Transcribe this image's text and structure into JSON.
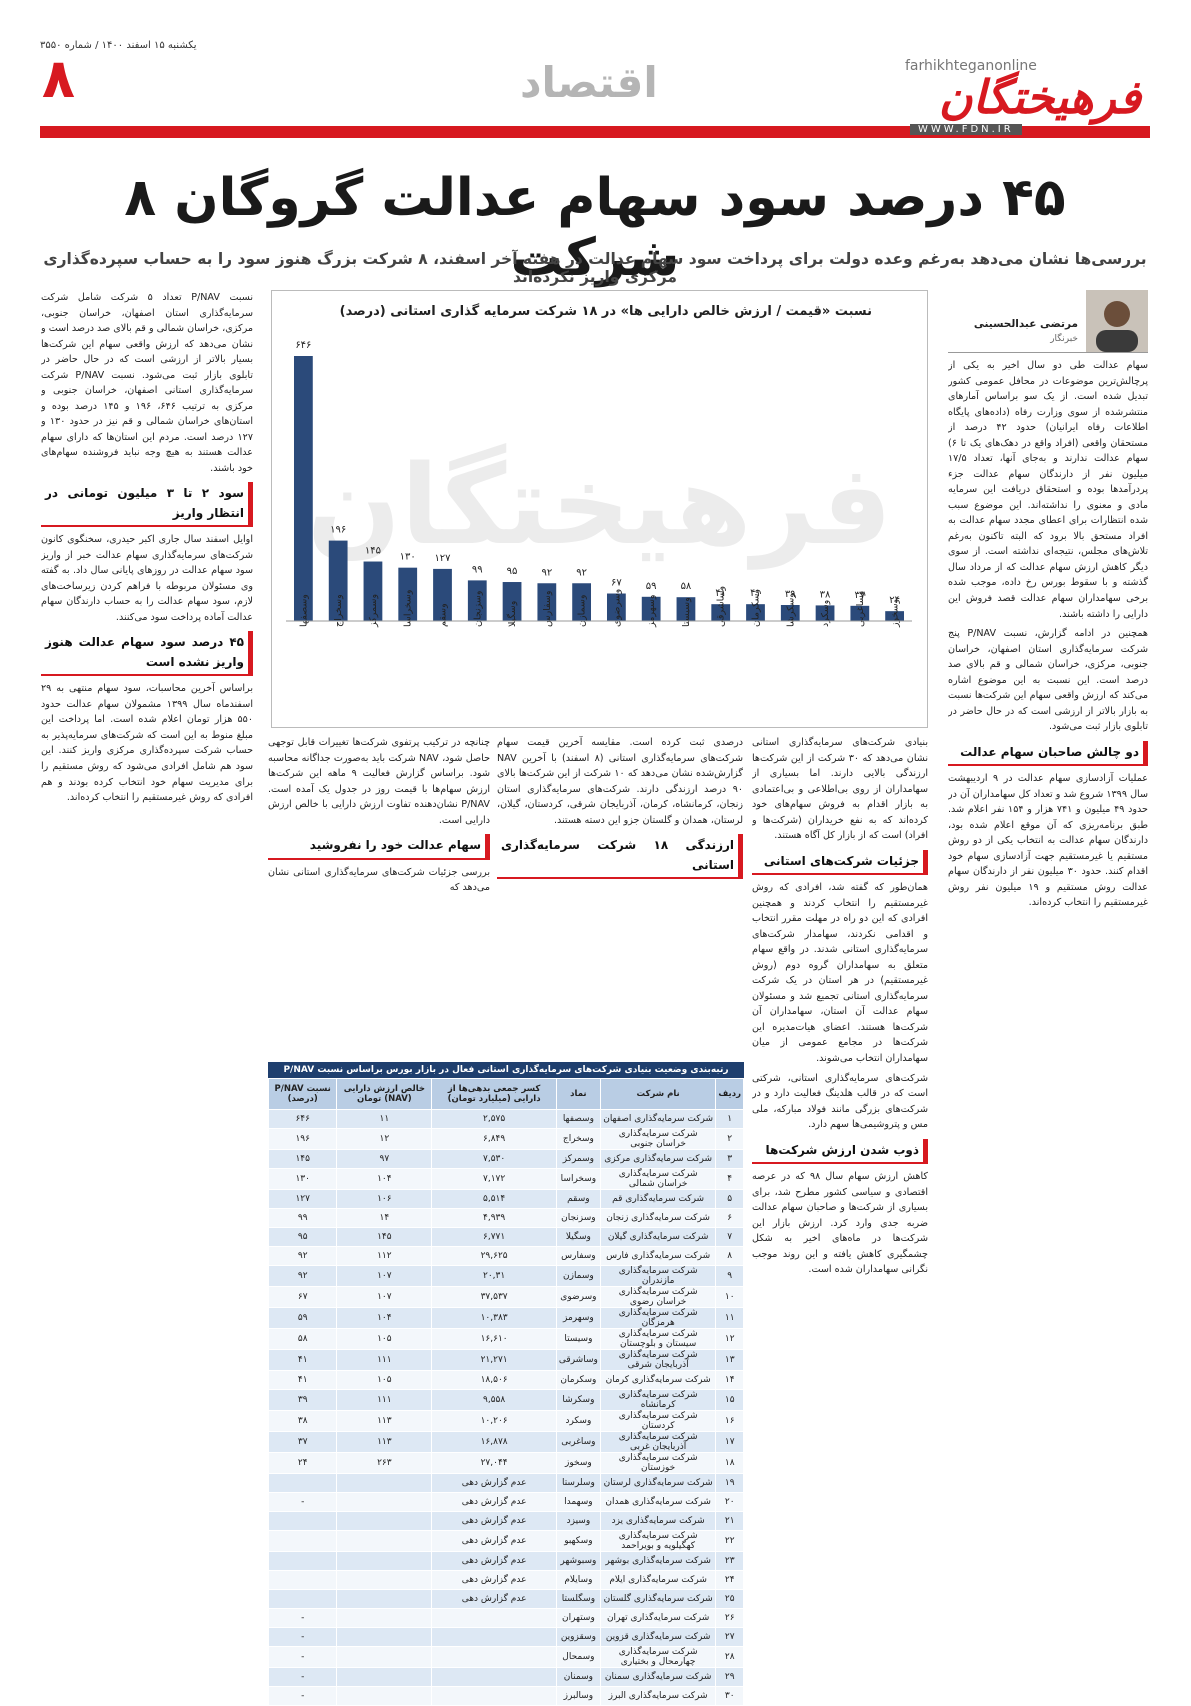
{
  "header": {
    "date": "یکشنبه ۱۵ اسفند ۱۴۰۰ / شماره ۳۵۵۰",
    "page_number": "۸",
    "section": "اقتصاد",
    "logo": "فرهیختگان",
    "site": "farhikhteganonline",
    "url": "WWW.FDN.IR"
  },
  "headline": "۴۵ درصد سود سهام عدالت گروگان ۸ شرکت",
  "lead": "بررسی‌ها نشان می‌دهد به‌رغم وعده دولت برای پرداخت سود سهام عدالت در هفته آخر اسفند، ۸ شرکت بزرگ هنوز سود را به حساب سپرده‌گذاری مرکزی واریز نکرده‌اند",
  "author": {
    "name": "مرتضی عبدالحسینی",
    "role": "خبرنگار"
  },
  "chart_data": {
    "type": "bar",
    "title": "نسبت «قیمت / ارزش خالص دارایی ها» در ۱۸ شرکت سرمایه گذاری استانی (درصد)",
    "categories": [
      "وسصفها",
      "وسخراج",
      "وسمرکز",
      "وسخراسا",
      "وسقم",
      "وسزنجان",
      "وسگیلا",
      "وسفارس",
      "وسمازن",
      "وسرضوی",
      "وسهرمز",
      "وسیستا",
      "وساشرقی",
      "وسکرمان",
      "وسکرشا",
      "وسکرد",
      "وساغربی",
      "وسخوز"
    ],
    "values": [
      646,
      196,
      145,
      130,
      127,
      99,
      95,
      92,
      92,
      67,
      59,
      58,
      41,
      41,
      39,
      38,
      37,
      24
    ],
    "value_labels": [
      "۶۴۶",
      "۱۹۶",
      "۱۴۵",
      "۱۳۰",
      "۱۲۷",
      "۹۹",
      "۹۵",
      "۹۲",
      "۹۲",
      "۶۷",
      "۵۹",
      "۵۸",
      "۴۱",
      "۴۱",
      "۳۹",
      "۳۸",
      "۳۷",
      "۲۴"
    ],
    "color": "#2b4a7a"
  },
  "columns": {
    "right": [
      "سهام عدالت طی دو سال اخیر به یکی از پرچالش‌ترین موضوعات در محافل عمومی کشور تبدیل شده است. از یک سو براساس آمارهای منتشرشده از سوی وزارت رفاه (داده‌های پایگاه اطلاعات رفاه ایرانیان) حدود ۴۲ درصد از مستحقان واقعی (افراد واقع در دهک‌های یک تا ۶) سهام عدالت ندارند و به‌جای آنها، تعداد ۱۷/۵ میلیون نفر از دارندگان سهام عدالت جزء پردرآمدها بوده و استحقاق دریافت این سرمایه مادی و معنوی را نداشته‌اند. این موضوع سبب شده انتظارات برای اعطای مجدد سهام عدالت به افراد مستحق بالا برود که البته تاکنون به‌رغم تلاش‌های مجلس، نتیجه‌ای نداشته است. از سوی دیگر کاهش ارزش سهام عدالت که از مرداد سال گذشته و با سقوط بورس رخ داده، موجب شده برخی سهامداران سهام عدالت قصد فروش این دارایی را داشته باشند.",
      "همچنین در ادامه گزارش، نسبت P/NAV پنج شرکت سرمایه‌گذاری استان اصفهان، خراسان جنوبی، مرکزی، خراسان شمالی و قم بالای صد درصد است. این نسبت به این موضوع اشاره می‌کند که ارزش واقعی سهام این شرکت‌ها نسبت به بازار بالاتر از ارزشی است که در حال حاضر در تابلوی بازار ثبت می‌شود."
    ],
    "right_heading": "دو چالش صاحبان سهام عدالت",
    "right_after": [
      "عملیات آزادسازی سهام عدالت در ۹ اردیبهشت سال ۱۳۹۹ شروع شد و تعداد کل سهامداران آن در حدود ۴۹ میلیون و ۷۴۱ هزار و ۱۵۴ نفر اعلام شد. طبق برنامه‌ریزی که آن موقع اعلام شده بود، دارندگان سهام عدالت به انتخاب یکی از دو روش مستقیم یا غیرمستقیم جهت آزادسازی سهام خود اقدام کنند. حدود ۳۰ میلیون نفر از دارندگان سهام عدالت روش مستقیم و ۱۹ میلیون نفر روش غیرمستقیم را انتخاب کرده‌اند."
    ],
    "left_top": [
      "نسبت P/NAV تعداد ۵ شرکت شامل شرکت سرمایه‌گذاری استان اصفهان، خراسان جنوبی، مرکزی، خراسان شمالی و قم بالای صد درصد است و نشان می‌دهد که ارزش واقعی سهام این شرکت‌ها بسیار بالاتر از ارزشی است که در حال حاضر در تابلوی بازار ثبت می‌شود. نسبت P/NAV شرکت سرمایه‌گذاری استانی اصفهان، خراسان جنوبی و مرکزی به ترتیب ۶۴۶، ۱۹۶ و ۱۴۵ درصد بوده و استان‌های خراسان شمالی و قم نیز در حدود ۱۳۰ و ۱۲۷ درصد است. مردم این استان‌ها که دارای سهام عدالت هستند به هیچ وجه نباید فروشنده سهام‌های خود باشند."
    ],
    "left_heading": "سود ۲ تا ۳ میلیون تومانی در انتظار واریز",
    "left_mid": [
      "اوایل اسفند سال جاری اکبر حیدری، سخنگوی کانون شرکت‌های سرمایه‌گذاری سهام عدالت خبر از واریز سود سهام عدالت در روزهای پایانی سال داد. به گفته وی مسئولان مربوطه با فراهم کردن زیرساخت‌های لازم، سود سهام عدالت را به حساب دارندگان سهام عدالت آماده پرداخت سود می‌کنند."
    ],
    "left_heading2": "۴۵ درصد سود سهام عدالت هنوز واریز نشده است",
    "left_bottom": [
      "براساس آخرین محاسبات، سود سهام منتهی به ۲۹ اسفندماه سال ۱۳۹۹ مشمولان سهام عدالت حدود ۵۵۰ هزار تومان اعلام شده است. اما پرداخت این مبلغ منوط به این است که شرکت‌های سرمایه‌پذیر به حساب شرکت سپرده‌گذاری مرکزی واریز کنند. این سود هم شامل افرادی می‌شود که روش مستقیم را برای مدیریت سهام خود انتخاب کرده بودند و هم افرادی که روش غیرمستقیم را انتخاب کرده‌اند."
    ],
    "mid_right": [
      "بنیادی شرکت‌های سرمایه‌گذاری استانی نشان می‌دهد که ۳۰ شرکت از این شرکت‌ها ارزندگی بالایی دارند. اما بسیاری از سهامداران از روی بی‌اطلاعی و بی‌اعتمادی به بازار اقدام به فروش سهام‌های خود کرده‌اند که به نفع خریداران (شرکت‌ها و افراد) است که از بازار کل آگاه هستند."
    ],
    "mid_right_heading": "جزئیات شرکت‌های استانی",
    "mid_right_after": [
      "همان‌طور که گفته شد، افرادی که روش غیرمستقیم را انتخاب کردند و همچنین افرادی که این دو راه در مهلت مقرر انتخاب و اقدامی نکردند، سهامدار شرکت‌های سرمایه‌گذاری استانی شدند. در واقع سهام متعلق به سهامداران گروه دوم (روش غیرمستقیم) در هر استان در یک شرکت سرمایه‌گذاری استانی تجمیع شد و مسئولان سهام عدالت آن استان، سهامداران آن شرکت‌ها هستند. اعضای هیات‌مدیره این شرکت‌ها در مجامع عمومی از میان سهامداران انتخاب می‌شوند.",
      "شرکت‌های سرمایه‌گذاری استانی، شرکتی است که در قالب هلدینگ فعالیت دارد و در شرکت‌های بزرگی مانند فولاد مبارکه، ملی مس و پتروشیمی‌ها سهم دارد."
    ],
    "mid_right_heading2": "ذوب شدن ارزش شرکت‌ها",
    "mid_right_after2": [
      "کاهش ارزش سهام سال ۹۸ که در عرصه اقتصادی و سیاسی کشور مطرح شد، برای بسیاری از شرکت‌ها و صاحبان سهام عدالت ضربه جدی وارد کرد. ارزش بازار این شرکت‌ها در ماه‌های اخیر به شکل چشمگیری کاهش یافته و این روند موجب نگرانی سهامداران شده است."
    ],
    "mid_left": [
      "درصدی ثبت کرده است. مقایسه آخرین قیمت سهام شرکت‌های سرمایه‌گذاری استانی (۸ اسفند) با آخرین NAV گزارش‌شده نشان می‌دهد که ۱۰ شرکت از این شرکت‌ها بالای ۹۰ درصد ارزندگی دارند. شرکت‌های سرمایه‌گذاری استان زنجان، کرمانشاه، کرمان، آذربایجان شرقی، کردستان، گیلان، لرستان، همدان و گلستان جزو این دسته هستند."
    ],
    "mid_left_heading": "ارزندگی ۱۸ شرکت سرمایه‌گذاری استانی",
    "mid_mid": [
      "چنانچه در ترکیب پرتفوی شرکت‌ها تغییرات قابل توجهی حاصل شود، NAV شرکت باید به‌صورت جداگانه محاسبه شود. براساس گزارش فعالیت ۹ ماهه این شرکت‌ها ارزش سهام‌ها با قیمت روز در جدول یک آمده است. P/NAV نشان‌دهنده تفاوت ارزش دارایی با خالص ارزش دارایی است."
    ],
    "mid_mid_heading": "سهام عدالت خود را نفروشید",
    "mid_mid_after": [
      "بررسی جزئیات شرکت‌های سرمایه‌گذاری استانی نشان می‌دهد که"
    ]
  },
  "table": {
    "title": "رتبه‌بندی وضعیت بنیادی شرکت‌های سرمایه‌گذاری استانی فعال در بازار بورس براساس نسبت P/NAV",
    "columns": [
      "ردیف",
      "نام شرکت",
      "نماد",
      "کسر جمعی بدهی‌ها از دارایی (میلیارد تومان)",
      "خالص ارزش دارایی (NAV) تومان",
      "نسبت P/NAV (درصد)"
    ],
    "rows": [
      [
        "۱",
        "شرکت سرمایه‌گذاری اصفهان",
        "وسصفها",
        "۲,۵۷۵",
        "۱۱",
        "۶۴۶"
      ],
      [
        "۲",
        "شرکت سرمایه‌گذاری خراسان جنوبی",
        "وسخراج",
        "۶,۸۴۹",
        "۱۲",
        "۱۹۶"
      ],
      [
        "۳",
        "شرکت سرمایه‌گذاری مرکزی",
        "وسمرکز",
        "۷,۵۳۰",
        "۹۷",
        "۱۴۵"
      ],
      [
        "۴",
        "شرکت سرمایه‌گذاری خراسان شمالی",
        "وسخراسا",
        "۷,۱۷۲",
        "۱۰۴",
        "۱۳۰"
      ],
      [
        "۵",
        "شرکت سرمایه‌گذاری قم",
        "وسقم",
        "۵,۵۱۴",
        "۱۰۶",
        "۱۲۷"
      ],
      [
        "۶",
        "شرکت سرمایه‌گذاری زنجان",
        "وسزنجان",
        "۴,۹۳۹",
        "۱۴",
        "۹۹"
      ],
      [
        "۷",
        "شرکت سرمایه‌گذاری گیلان",
        "وسگیلا",
        "۶,۷۷۱",
        "۱۴۵",
        "۹۵"
      ],
      [
        "۸",
        "شرکت سرمایه‌گذاری فارس",
        "وسفارس",
        "۲۹,۶۲۵",
        "۱۱۲",
        "۹۲"
      ],
      [
        "۹",
        "شرکت سرمایه‌گذاری مازندران",
        "وسمازن",
        "۲۰,۳۱",
        "۱۰۷",
        "۹۲"
      ],
      [
        "۱۰",
        "شرکت سرمایه‌گذاری خراسان رضوی",
        "وسرضوی",
        "۳۷,۵۳۷",
        "۱۰۷",
        "۶۷"
      ],
      [
        "۱۱",
        "شرکت سرمایه‌گذاری هرمزگان",
        "وسهرمز",
        "۱۰,۳۸۳",
        "۱۰۴",
        "۵۹"
      ],
      [
        "۱۲",
        "شرکت سرمایه‌گذاری سیستان و بلوچستان",
        "وسیستا",
        "۱۶,۶۱۰",
        "۱۰۵",
        "۵۸"
      ],
      [
        "۱۳",
        "شرکت سرمایه‌گذاری آذربایجان شرقی",
        "وساشرقی",
        "۲۱,۲۷۱",
        "۱۱۱",
        "۴۱"
      ],
      [
        "۱۴",
        "شرکت سرمایه‌گذاری کرمان",
        "وسکرمان",
        "۱۸,۵۰۶",
        "۱۰۵",
        "۴۱"
      ],
      [
        "۱۵",
        "شرکت سرمایه‌گذاری کرمانشاه",
        "وسکرشا",
        "۹,۵۵۸",
        "۱۱۱",
        "۳۹"
      ],
      [
        "۱۶",
        "شرکت سرمایه‌گذاری کردستان",
        "وسکرد",
        "۱۰,۲۰۶",
        "۱۱۳",
        "۳۸"
      ],
      [
        "۱۷",
        "شرکت سرمایه‌گذاری آذربایجان غربی",
        "وساغربی",
        "۱۶,۸۷۸",
        "۱۱۳",
        "۳۷"
      ],
      [
        "۱۸",
        "شرکت سرمایه‌گذاری خوزستان",
        "وسخوز",
        "۲۷,۰۴۴",
        "۲۶۳",
        "۲۴"
      ],
      [
        "۱۹",
        "شرکت سرمایه‌گذاری لرستان",
        "وسلرستا",
        "عدم گزارش دهی",
        "",
        ""
      ],
      [
        "۲۰",
        "شرکت سرمایه‌گذاری همدان",
        "وسهمدا",
        "عدم گزارش دهی",
        "",
        "-"
      ],
      [
        "۲۱",
        "شرکت سرمایه‌گذاری یزد",
        "وسیزد",
        "عدم گزارش دهی",
        "",
        ""
      ],
      [
        "۲۲",
        "شرکت سرمایه‌گذاری کهگیلویه و بویراحمد",
        "وسکهبو",
        "عدم گزارش دهی",
        "",
        ""
      ],
      [
        "۲۳",
        "شرکت سرمایه‌گذاری بوشهر",
        "وسبوشهر",
        "عدم گزارش دهی",
        "",
        ""
      ],
      [
        "۲۴",
        "شرکت سرمایه‌گذاری ایلام",
        "وسایلام",
        "عدم گزارش دهی",
        "",
        ""
      ],
      [
        "۲۵",
        "شرکت سرمایه‌گذاری گلستان",
        "وسگلستا",
        "عدم گزارش دهی",
        "",
        ""
      ],
      [
        "۲۶",
        "شرکت سرمایه‌گذاری تهران",
        "وستهران",
        "",
        "",
        "-"
      ],
      [
        "۲۷",
        "شرکت سرمایه‌گذاری قزوین",
        "وسقزوین",
        "",
        "",
        "-"
      ],
      [
        "۲۸",
        "شرکت سرمایه‌گذاری چهارمحال و بختیاری",
        "وسمحال",
        "",
        "",
        "-"
      ],
      [
        "۲۹",
        "شرکت سرمایه‌گذاری سمنان",
        "وسمنان",
        "",
        "",
        "-"
      ],
      [
        "۳۰",
        "شرکت سرمایه‌گذاری البرز",
        "وسالبرز",
        "",
        "",
        "-"
      ]
    ]
  }
}
